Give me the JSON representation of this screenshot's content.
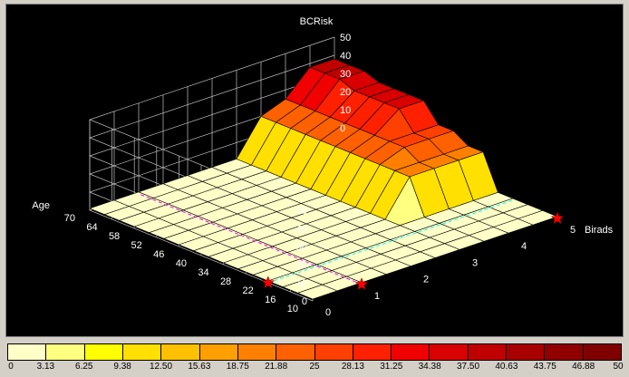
{
  "chart_data": {
    "type": "surface3d",
    "title": "BCRisk",
    "axes": {
      "age": {
        "label": "Age",
        "ticks": [
          70,
          64,
          58,
          52,
          46,
          40,
          34,
          28,
          22,
          16,
          10
        ],
        "range": [
          10,
          70
        ]
      },
      "birads": {
        "label": "Birads",
        "ticks": [
          0,
          1,
          2,
          3,
          4,
          5
        ],
        "range": [
          0,
          5
        ]
      },
      "z": {
        "ticks": [
          0,
          10,
          20,
          30,
          40,
          50
        ],
        "range": [
          0,
          50
        ]
      }
    },
    "grid": {
      "birads_values": [
        0,
        0.5,
        1,
        1.5,
        2,
        2.5,
        3,
        3.5,
        4,
        4.5,
        5
      ],
      "age_values": [
        10,
        14,
        18,
        22,
        26,
        30,
        34,
        38,
        42,
        46,
        50,
        54,
        58,
        62,
        66,
        70
      ],
      "risk_levels": [
        [
          1,
          1,
          1,
          1,
          1,
          1,
          1,
          1,
          1,
          1,
          1,
          1,
          1,
          1,
          1,
          1
        ],
        [
          1,
          1,
          1,
          1,
          1,
          1,
          1,
          1,
          1,
          1,
          1,
          1,
          1,
          1,
          1,
          1
        ],
        [
          1,
          1,
          1,
          1,
          1,
          1,
          1,
          1,
          1,
          1,
          1,
          1,
          1,
          1,
          1,
          1
        ],
        [
          1,
          1,
          1,
          1,
          1,
          1,
          1,
          1,
          1,
          1,
          1,
          1,
          1,
          1,
          1,
          1
        ],
        [
          1,
          1,
          1,
          1,
          1,
          1,
          1,
          1,
          1,
          1,
          1,
          1,
          1,
          1,
          1,
          1
        ],
        [
          1,
          1,
          1,
          1,
          1,
          1,
          1,
          1,
          1,
          1,
          1,
          1,
          1,
          1,
          1,
          1
        ],
        [
          1,
          1,
          1,
          1,
          1,
          1,
          1,
          1,
          1,
          1,
          1,
          1,
          1,
          1,
          1,
          1
        ],
        [
          1,
          1,
          1,
          1,
          1,
          20,
          20,
          20,
          20,
          20,
          20,
          20,
          20,
          20,
          20,
          20
        ],
        [
          1,
          1,
          1,
          1,
          1,
          20,
          20,
          25,
          25,
          25,
          25,
          25,
          25,
          25,
          25,
          25
        ],
        [
          1,
          1,
          1,
          1,
          1,
          20,
          20,
          25,
          25,
          35,
          35,
          35,
          35,
          38,
          38,
          38
        ],
        [
          1,
          1,
          1,
          1,
          1,
          20,
          20,
          25,
          25,
          35,
          35,
          35,
          35,
          38,
          38,
          38
        ]
      ]
    },
    "markers": [
      {
        "age": 22,
        "birads": 0
      },
      {
        "age": 10,
        "birads": 1
      },
      {
        "age": 10,
        "birads": 5
      }
    ]
  },
  "legend": {
    "tick_labels": [
      "0",
      "3.13",
      "6.25",
      "9.38",
      "12.50",
      "15.63",
      "18.75",
      "21.88",
      "25",
      "28.13",
      "31.25",
      "34.38",
      "37.50",
      "40.63",
      "43.75",
      "46.88",
      "50"
    ],
    "colors": [
      "#ffffc8",
      "#ffff80",
      "#ffff00",
      "#ffe000",
      "#ffc000",
      "#ffa000",
      "#ff8000",
      "#ff6000",
      "#ff4000",
      "#ff2000",
      "#f00000",
      "#d80000",
      "#c00000",
      "#a80000",
      "#900000",
      "#800000"
    ]
  },
  "colors": {
    "background": "#000000",
    "grid_line": "#c0c0c0",
    "surface_edge": "#000000",
    "axis_text": "#ffffff",
    "marker": "#ff0000",
    "trace_cyan": "#00ffff",
    "trace_magenta": "#ff00ff"
  }
}
